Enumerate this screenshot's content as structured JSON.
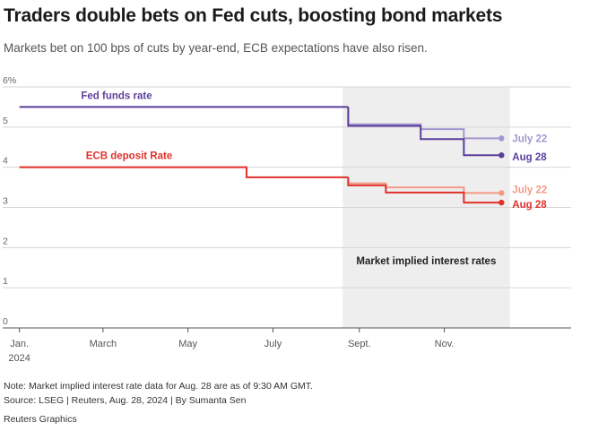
{
  "title": "Traders double bets on Fed cuts, boosting bond markets",
  "subtitle": "Markets bet on 100 bps of cuts by year-end, ECB expectations have also risen.",
  "chart_data": {
    "type": "line",
    "step": true,
    "title": "Traders double bets on Fed cuts, boosting bond markets",
    "ylim": [
      0,
      6
    ],
    "y_ticks": [
      {
        "value": 0,
        "label": "0"
      },
      {
        "value": 1,
        "label": "1"
      },
      {
        "value": 2,
        "label": "2"
      },
      {
        "value": 3,
        "label": "3"
      },
      {
        "value": 4,
        "label": "4"
      },
      {
        "value": 5,
        "label": "5"
      },
      {
        "value": 6,
        "label": "6%"
      }
    ],
    "xlim": [
      "2023-12-20",
      "2025-01-31"
    ],
    "x_ticks": [
      {
        "date": "2024-01-01",
        "label": "Jan.",
        "sublabel": "2024"
      },
      {
        "date": "2024-03-01",
        "label": "March",
        "sublabel": ""
      },
      {
        "date": "2024-05-01",
        "label": "May",
        "sublabel": ""
      },
      {
        "date": "2024-07-01",
        "label": "July",
        "sublabel": ""
      },
      {
        "date": "2024-09-01",
        "label": "Sept.",
        "sublabel": ""
      },
      {
        "date": "2024-11-01",
        "label": "Nov.",
        "sublabel": ""
      }
    ],
    "shaded_region": {
      "start": "2024-08-20",
      "end": "2024-12-18",
      "label": "Market implied interest rates"
    },
    "series": [
      {
        "name": "Fed funds rate",
        "label": "Fed funds rate",
        "color": "#5b3f9c",
        "points": [
          [
            "2024-01-01",
            5.5
          ],
          [
            "2024-08-24",
            5.5
          ]
        ]
      },
      {
        "name": "Fed July 22",
        "label": "July 22",
        "color": "#a597cf",
        "marker": true,
        "points": [
          [
            "2024-08-24",
            5.5
          ],
          [
            "2024-08-24",
            5.07
          ],
          [
            "2024-10-15",
            5.07
          ],
          [
            "2024-10-15",
            4.95
          ],
          [
            "2024-11-15",
            4.95
          ],
          [
            "2024-11-15",
            4.72
          ],
          [
            "2024-12-12",
            4.72
          ]
        ]
      },
      {
        "name": "Fed Aug 28",
        "label": "Aug 28",
        "color": "#5b3f9c",
        "marker": true,
        "points": [
          [
            "2024-08-24",
            5.5
          ],
          [
            "2024-08-24",
            5.03
          ],
          [
            "2024-10-15",
            5.03
          ],
          [
            "2024-10-15",
            4.7
          ],
          [
            "2024-11-15",
            4.7
          ],
          [
            "2024-11-15",
            4.3
          ],
          [
            "2024-12-12",
            4.3
          ]
        ]
      },
      {
        "name": "ECB deposit Rate",
        "label": "ECB deposit Rate",
        "color": "#e0312b",
        "points": [
          [
            "2024-01-01",
            4.0
          ],
          [
            "2024-06-12",
            4.0
          ],
          [
            "2024-06-12",
            3.75
          ],
          [
            "2024-08-24",
            3.75
          ]
        ]
      },
      {
        "name": "ECB July 22",
        "label": "July 22",
        "color": "#f39a86",
        "marker": true,
        "points": [
          [
            "2024-08-24",
            3.75
          ],
          [
            "2024-08-24",
            3.6
          ],
          [
            "2024-09-20",
            3.6
          ],
          [
            "2024-09-20",
            3.5
          ],
          [
            "2024-11-15",
            3.5
          ],
          [
            "2024-11-15",
            3.36
          ],
          [
            "2024-12-12",
            3.36
          ]
        ]
      },
      {
        "name": "ECB Aug 28",
        "label": "Aug 28",
        "color": "#e0312b",
        "marker": true,
        "points": [
          [
            "2024-08-24",
            3.75
          ],
          [
            "2024-08-24",
            3.55
          ],
          [
            "2024-09-20",
            3.55
          ],
          [
            "2024-09-20",
            3.37
          ],
          [
            "2024-11-15",
            3.37
          ],
          [
            "2024-11-15",
            3.12
          ],
          [
            "2024-12-12",
            3.12
          ]
        ]
      }
    ],
    "series_labels": {
      "fed": "Fed funds rate",
      "ecb": "ECB deposit Rate",
      "fed_july": "July 22",
      "fed_aug": "Aug 28",
      "ecb_july": "July 22",
      "ecb_aug": "Aug 28"
    }
  },
  "footer": {
    "note": "Note: Market implied interest rate data for Aug. 28 are as of 9:30 AM GMT.",
    "source": "Source: LSEG | Reuters, Aug. 28, 2024 | By Sumanta Sen",
    "credit": "Reuters Graphics"
  },
  "colors": {
    "fed": "#5b3f9c",
    "fed_light": "#a597cf",
    "ecb": "#e0312b",
    "ecb_light": "#f39a86",
    "shade": "#eeeeee",
    "grid": "#d6d6d6",
    "axis": "#555555"
  }
}
